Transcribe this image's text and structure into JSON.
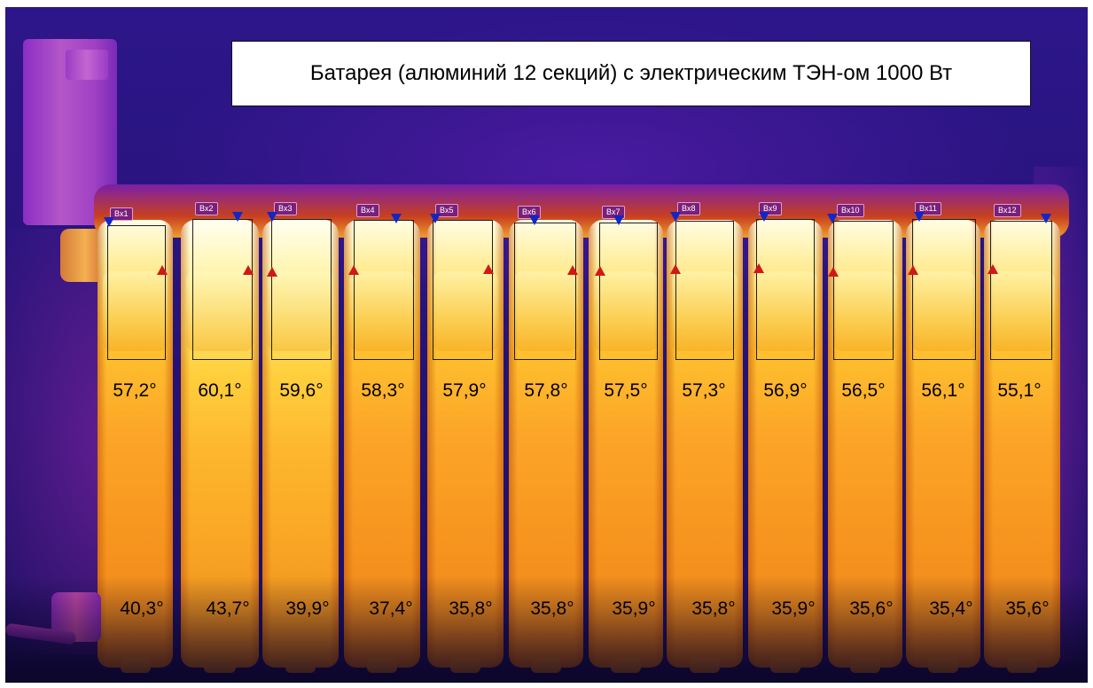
{
  "title": "Батарея (алюминий 12 секций) с электрическим ТЭН-ом 1000 Вт",
  "sections": [
    {
      "tag": "Bx1",
      "top_temp": "57,2°",
      "bottom_temp": "40,3°"
    },
    {
      "tag": "Bx2",
      "top_temp": "60,1°",
      "bottom_temp": "43,7°"
    },
    {
      "tag": "Bx3",
      "top_temp": "59,6°",
      "bottom_temp": "39,9°"
    },
    {
      "tag": "Bx4",
      "top_temp": "58,3°",
      "bottom_temp": "37,4°"
    },
    {
      "tag": "Bx5",
      "top_temp": "57,9°",
      "bottom_temp": "35,8°"
    },
    {
      "tag": "Bx6",
      "top_temp": "57,8°",
      "bottom_temp": "35,8°"
    },
    {
      "tag": "Bx7",
      "top_temp": "57,5°",
      "bottom_temp": "35,9°"
    },
    {
      "tag": "Bx8",
      "top_temp": "57,3°",
      "bottom_temp": "35,8°"
    },
    {
      "tag": "Bx9",
      "top_temp": "56,9°",
      "bottom_temp": "35,9°"
    },
    {
      "tag": "Bx10",
      "top_temp": "56,5°",
      "bottom_temp": "35,6°"
    },
    {
      "tag": "Bx11",
      "top_temp": "56,1°",
      "bottom_temp": "35,4°"
    },
    {
      "tag": "Bx12",
      "top_temp": "55,1°",
      "bottom_temp": "35,6°"
    }
  ],
  "colors": {
    "background": "#2c168a",
    "hot": "#fff6b8",
    "warm": "#f7961f",
    "min_marker": "#1226c8",
    "max_marker": "#d01818"
  }
}
